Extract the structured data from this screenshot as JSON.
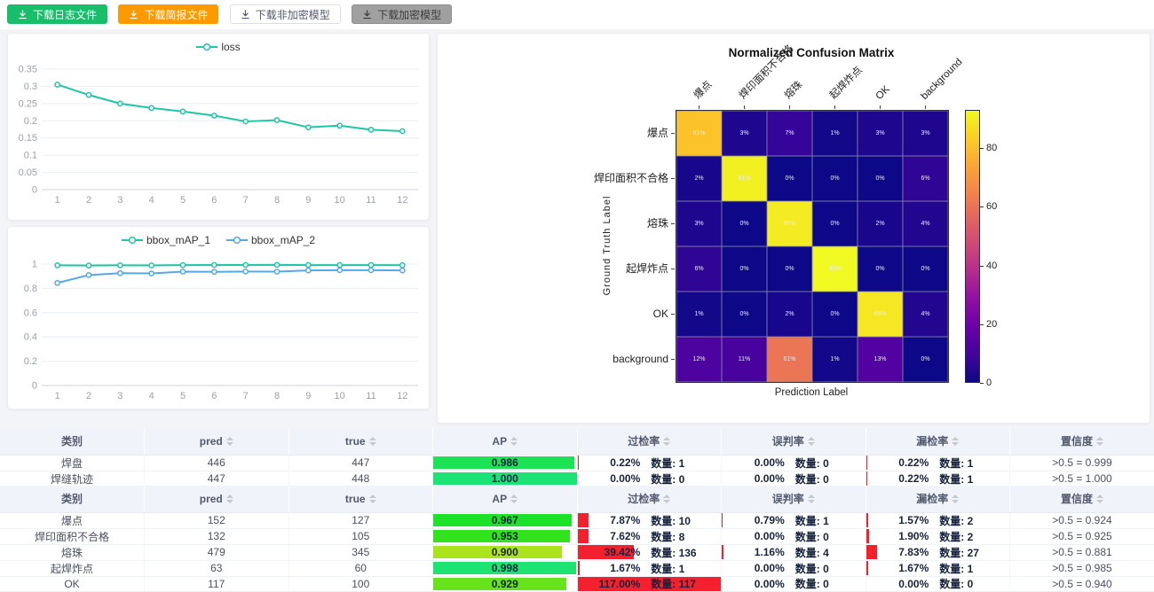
{
  "toolbar": {
    "buttons": [
      {
        "label": "下载日志文件",
        "type": "success"
      },
      {
        "label": "下载简报文件",
        "type": "warning"
      },
      {
        "label": "下载非加密模型",
        "type": "plain"
      },
      {
        "label": "下载加密模型",
        "type": "disabled"
      }
    ]
  },
  "colors": {
    "success": "#19be6b",
    "warning": "#ff9900",
    "disabled_bg": "#a0a0a0",
    "loss_line": "#1fc6a4",
    "map1_line": "#1fc6a4",
    "map2_line": "#54a8ec",
    "rate_bar_red": "#f5202e",
    "table_header_bg": "#f0f3f9"
  },
  "icons": {
    "button_icon": "download-icon",
    "header_sort_icon": "sort-caret-icon"
  },
  "chart_data": [
    {
      "type": "line",
      "title": "",
      "x": [
        1,
        2,
        3,
        4,
        5,
        6,
        7,
        8,
        9,
        10,
        11,
        12
      ],
      "ylim": [
        0,
        0.35
      ],
      "yticks": [
        0,
        0.05,
        0.1,
        0.15,
        0.2,
        0.25,
        0.3,
        0.35
      ],
      "grid": true,
      "legend_position": "top",
      "series": [
        {
          "name": "loss",
          "color": "#1fc6a4",
          "values": [
            0.305,
            0.275,
            0.25,
            0.237,
            0.227,
            0.215,
            0.198,
            0.202,
            0.181,
            0.186,
            0.174,
            0.17
          ]
        }
      ]
    },
    {
      "type": "line",
      "title": "",
      "x": [
        1,
        2,
        3,
        4,
        5,
        6,
        7,
        8,
        9,
        10,
        11,
        12
      ],
      "ylim": [
        0,
        1
      ],
      "yticks": [
        0,
        0.2,
        0.4,
        0.6,
        0.8,
        1
      ],
      "grid": true,
      "legend_position": "top",
      "series": [
        {
          "name": "bbox_mAP_1",
          "color": "#1fc6a4",
          "values": [
            0.99,
            0.988,
            0.99,
            0.989,
            0.992,
            0.993,
            0.993,
            0.994,
            0.992,
            0.992,
            0.992,
            0.991
          ]
        },
        {
          "name": "bbox_mAP_2",
          "color": "#54a8ec",
          "values": [
            0.845,
            0.91,
            0.925,
            0.923,
            0.938,
            0.936,
            0.939,
            0.938,
            0.948,
            0.95,
            0.95,
            0.948
          ]
        }
      ]
    },
    {
      "type": "heatmap",
      "title": "Normalized Confusion Matrix",
      "xlabel": "Prediction Label",
      "ylabel": "Ground Truth Label",
      "labels": [
        "爆点",
        "焊印面积不合格",
        "熔珠",
        "起焊炸点",
        "OK",
        "background"
      ],
      "unit": "%",
      "vmax": 93,
      "colorbar_ticks": [
        0,
        20,
        40,
        60,
        80
      ],
      "matrix": [
        [
          81,
          3,
          7,
          1,
          3,
          3
        ],
        [
          2,
          91,
          0,
          0,
          0,
          6
        ],
        [
          3,
          0,
          90,
          0,
          2,
          4
        ],
        [
          6,
          0,
          0,
          93,
          0,
          0
        ],
        [
          1,
          0,
          2,
          0,
          89,
          4
        ],
        [
          12,
          11,
          61,
          1,
          13,
          0
        ]
      ]
    }
  ],
  "tables": [
    {
      "count_label": "数量:",
      "columns": [
        {
          "label": "类别",
          "sortable": false
        },
        {
          "label": "pred",
          "sortable": true
        },
        {
          "label": "true",
          "sortable": true
        },
        {
          "label": "AP",
          "sortable": true
        },
        {
          "label": "过检率",
          "sortable": true
        },
        {
          "label": "误判率",
          "sortable": true
        },
        {
          "label": "漏检率",
          "sortable": true
        },
        {
          "label": "置信度",
          "sortable": true
        }
      ],
      "rows": [
        {
          "category": "焊盘",
          "pred": "446",
          "true": "447",
          "ap": "0.986",
          "over": {
            "pct": "0.22%",
            "count": "1"
          },
          "mis": {
            "pct": "0.00%",
            "count": "0"
          },
          "miss": {
            "pct": "0.22%",
            "count": "1"
          },
          "conf": ">0.5 = 0.999"
        },
        {
          "category": "焊缝轨迹",
          "pred": "447",
          "true": "448",
          "ap": "1.000",
          "over": {
            "pct": "0.00%",
            "count": "0"
          },
          "mis": {
            "pct": "0.00%",
            "count": "0"
          },
          "miss": {
            "pct": "0.22%",
            "count": "1"
          },
          "conf": ">0.5 = 1.000"
        }
      ]
    },
    {
      "count_label": "数量:",
      "columns": [
        {
          "label": "类别",
          "sortable": false
        },
        {
          "label": "pred",
          "sortable": true
        },
        {
          "label": "true",
          "sortable": true
        },
        {
          "label": "AP",
          "sortable": true
        },
        {
          "label": "过检率",
          "sortable": true
        },
        {
          "label": "误判率",
          "sortable": true
        },
        {
          "label": "漏检率",
          "sortable": true
        },
        {
          "label": "置信度",
          "sortable": true
        }
      ],
      "rows": [
        {
          "category": "爆点",
          "pred": "152",
          "true": "127",
          "ap": "0.967",
          "over": {
            "pct": "7.87%",
            "count": "10"
          },
          "mis": {
            "pct": "0.79%",
            "count": "1"
          },
          "miss": {
            "pct": "1.57%",
            "count": "2"
          },
          "conf": ">0.5 = 0.924"
        },
        {
          "category": "焊印面积不合格",
          "pred": "132",
          "true": "105",
          "ap": "0.953",
          "over": {
            "pct": "7.62%",
            "count": "8"
          },
          "mis": {
            "pct": "0.00%",
            "count": "0"
          },
          "miss": {
            "pct": "1.90%",
            "count": "2"
          },
          "conf": ">0.5 = 0.925"
        },
        {
          "category": "熔珠",
          "pred": "479",
          "true": "345",
          "ap": "0.900",
          "over": {
            "pct": "39.42%",
            "count": "136"
          },
          "mis": {
            "pct": "1.16%",
            "count": "4"
          },
          "miss": {
            "pct": "7.83%",
            "count": "27"
          },
          "conf": ">0.5 = 0.881"
        },
        {
          "category": "起焊炸点",
          "pred": "63",
          "true": "60",
          "ap": "0.998",
          "over": {
            "pct": "1.67%",
            "count": "1"
          },
          "mis": {
            "pct": "0.00%",
            "count": "0"
          },
          "miss": {
            "pct": "1.67%",
            "count": "1"
          },
          "conf": ">0.5 = 0.985"
        },
        {
          "category": "OK",
          "pred": "117",
          "true": "100",
          "ap": "0.929",
          "over": {
            "pct": "117.00%",
            "count": "117"
          },
          "mis": {
            "pct": "0.00%",
            "count": "0"
          },
          "miss": {
            "pct": "0.00%",
            "count": "0"
          },
          "conf": ">0.5 = 0.940"
        }
      ]
    }
  ]
}
